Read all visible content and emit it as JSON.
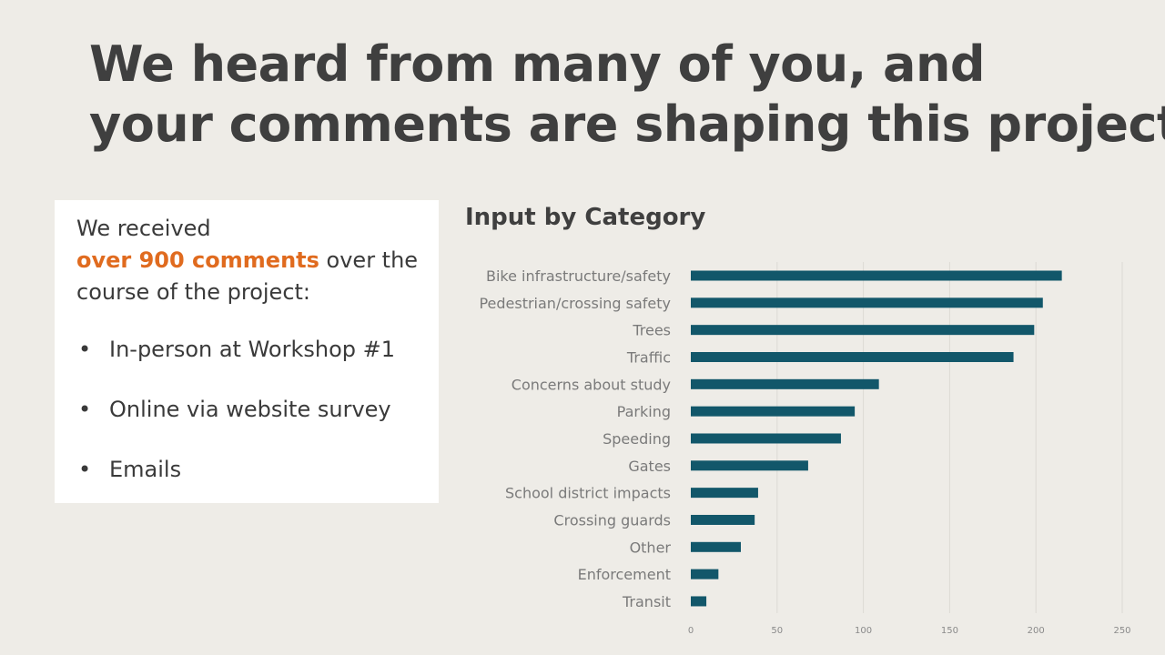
{
  "slide": {
    "title_line1": "We heard from many of you, and",
    "title_line2": "your comments are shaping this project"
  },
  "card": {
    "intro_before": "We received",
    "intro_highlight": "over 900 comments",
    "intro_after": " over the course of the project:",
    "bullets": [
      "In-person at Workshop #1",
      "Online via website survey",
      "Emails"
    ],
    "bullet_glyph": "•"
  },
  "colors": {
    "highlight": "#e06b1f",
    "bar": "#12576a",
    "background": "#eeece7"
  },
  "chart_data": {
    "type": "bar",
    "orientation": "horizontal",
    "title": "Input by Category",
    "categories": [
      "Bike infrastructure/safety",
      "Pedestrian/crossing safety",
      "Trees",
      "Traffic",
      "Concerns about study",
      "Parking",
      "Speeding",
      "Gates",
      "School district impacts",
      "Crossing guards",
      "Other",
      "Enforcement",
      "Transit"
    ],
    "values": [
      215,
      204,
      199,
      187,
      109,
      95,
      87,
      68,
      39,
      37,
      29,
      16,
      9
    ],
    "xlim": [
      0,
      250
    ],
    "xticks": [
      0,
      50,
      100,
      150,
      200,
      250
    ],
    "xlabel": "",
    "ylabel": "",
    "grid": true,
    "legend": "none"
  }
}
